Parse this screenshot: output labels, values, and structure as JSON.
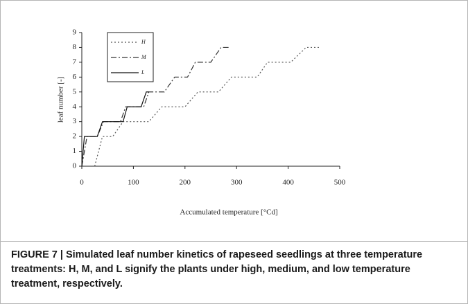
{
  "chart_data": {
    "type": "line",
    "xlabel": "Accumulated temperature [°Cd]",
    "ylabel": "leaf number [-]",
    "xlim": [
      0,
      500
    ],
    "xticks": [
      0,
      100,
      200,
      300,
      400,
      500
    ],
    "ylim": [
      0,
      9
    ],
    "yticks": [
      0,
      1,
      2,
      3,
      4,
      5,
      6,
      7,
      8,
      9
    ],
    "series": [
      {
        "name": "H",
        "color": "#555555",
        "linestyle": "dotted",
        "x": [
          25,
          40,
          60,
          80,
          130,
          155,
          200,
          225,
          265,
          290,
          340,
          360,
          405,
          435,
          460
        ],
        "values": [
          0,
          2,
          2,
          3,
          3,
          4,
          4,
          5,
          5,
          6,
          6,
          7,
          7,
          8,
          8
        ]
      },
      {
        "name": "M",
        "color": "#333333",
        "linestyle": "dashdot",
        "x": [
          0,
          10,
          30,
          42,
          75,
          85,
          120,
          130,
          160,
          180,
          205,
          220,
          250,
          270,
          285
        ],
        "values": [
          0,
          2,
          2,
          3,
          3,
          4,
          4,
          5,
          5,
          6,
          6,
          7,
          7,
          8,
          8
        ]
      },
      {
        "name": "L",
        "color": "#111111",
        "linestyle": "solid",
        "x": [
          0,
          5,
          30,
          40,
          80,
          88,
          115,
          125,
          130
        ],
        "values": [
          0,
          2,
          2,
          3,
          3,
          4,
          4,
          5,
          5
        ]
      }
    ],
    "caption": "FIGURE 7 | Simulated leaf number kinetics of rapeseed seedlings at three temperature treatments: H, M, and L signify the plants under high, medium, and low temperature treatment, respectively."
  }
}
